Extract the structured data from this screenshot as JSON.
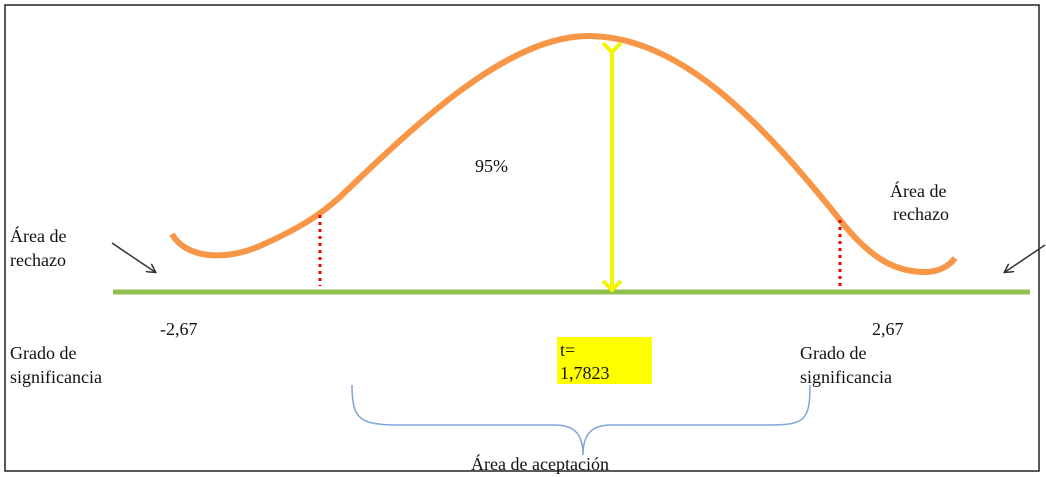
{
  "diagram": {
    "center_percent": "95%",
    "left": {
      "region_lines": [
        "Área de",
        "rechazo"
      ],
      "critical_value": "-2,67",
      "significance_lines": [
        "Grado de",
        "significancia"
      ]
    },
    "right": {
      "region_lines": [
        "Área de",
        "rechazo"
      ],
      "critical_value": "2,67",
      "significance_lines": [
        "Grado de",
        "significancia"
      ]
    },
    "statistic_lines": [
      "t=",
      "1,7823"
    ],
    "acceptance_label": "Área de aceptación"
  }
}
